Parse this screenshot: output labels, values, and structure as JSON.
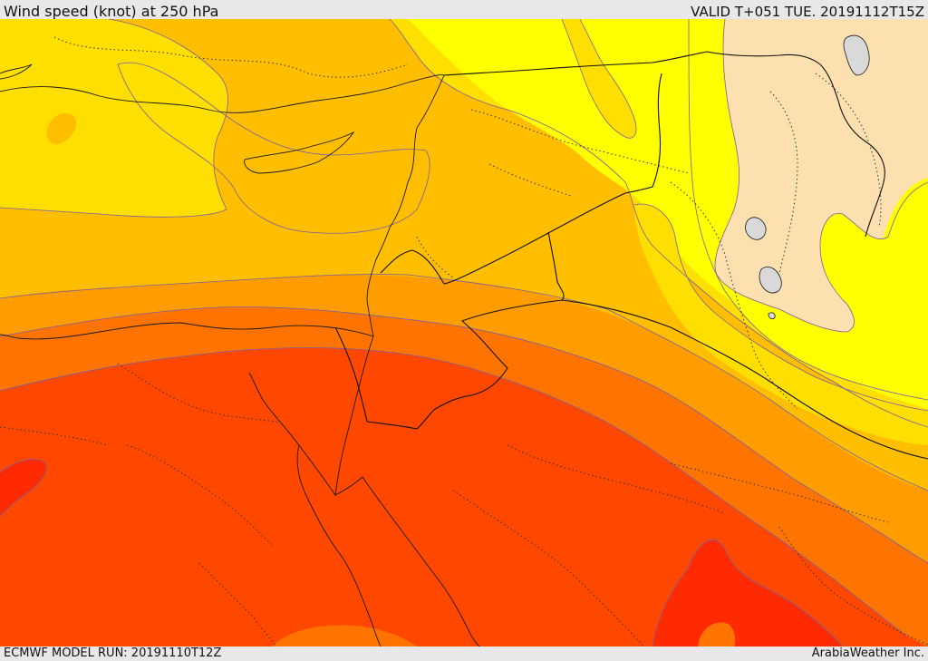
{
  "header": {
    "title": "Wind speed (knot) at 250 hPa",
    "valid_time": "VALID T+051 TUE. 20191112T15Z"
  },
  "footer": {
    "model_run": "ECMWF MODEL RUN: 20191110T12Z",
    "credit": "ArabiaWeather Inc."
  },
  "palette": {
    "band_1": "#ffff00",
    "band_2": "#ffdf00",
    "band_3": "#ffbe00",
    "band_4": "#ff9d00",
    "band_5": "#ff7400",
    "band_6": "#ff4700",
    "band_7": "#ff2a00",
    "calm_land": "#fde0b0",
    "lake": "#d9d9d9"
  }
}
